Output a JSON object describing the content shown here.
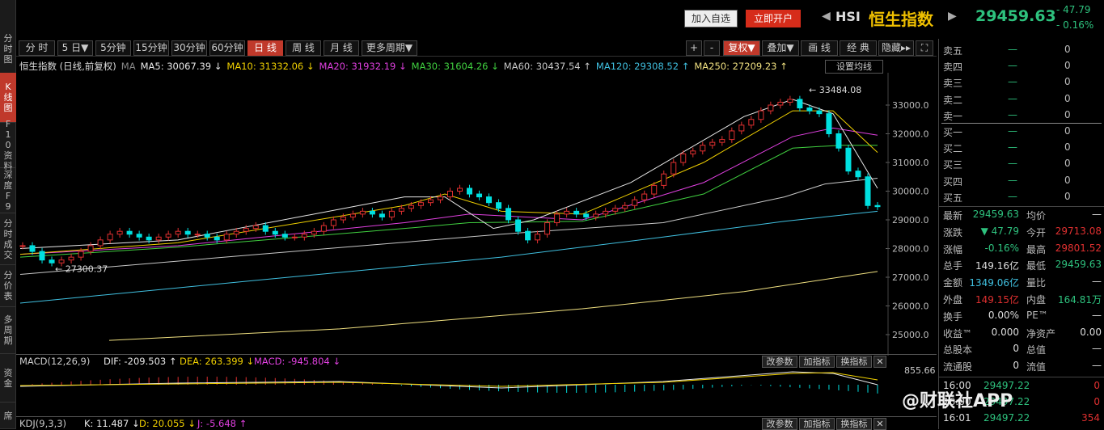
{
  "left_tabs": [
    "分时图",
    "K线图",
    "F10资料",
    "深度F9",
    "分时成交",
    "分价表",
    "多周期",
    "资金",
    "席"
  ],
  "header": {
    "add_watch": "加入自选",
    "open_account": "立即开户",
    "code": "HSI",
    "name": "恒生指数",
    "price": "29459.63",
    "change": "- 47.79",
    "change_pct": "- 0.16%"
  },
  "period_tabs": [
    "分 时",
    "5 日▼",
    "5分钟",
    "15分钟",
    "30分钟",
    "60分钟",
    "日 线",
    "周 线",
    "月 线",
    "更多周期▼"
  ],
  "active_period": "日 线",
  "toolbar_right": [
    "+",
    "-",
    "复权▼",
    "叠加▼",
    "画 线",
    "经 典",
    "隐藏▸▸",
    "⛶"
  ],
  "ma_legend": {
    "title": "恒生指数 (日线,前复权)",
    "ma": "MA",
    "items": [
      {
        "label": "MA5: 30067.39 ↓",
        "color": "#e8e8e8"
      },
      {
        "label": "MA10: 31332.06 ↓",
        "color": "#f0d000"
      },
      {
        "label": "MA20: 31932.19 ↓",
        "color": "#e040e0"
      },
      {
        "label": "MA30: 31604.26 ↓",
        "color": "#40d040"
      },
      {
        "label": "MA60: 30437.54 ↑",
        "color": "#c8c8c8"
      },
      {
        "label": "MA120: 29308.52 ↑",
        "color": "#40c0e0"
      },
      {
        "label": "MA250: 27209.23 ↑",
        "color": "#f0e080"
      }
    ],
    "settings": "设置均线"
  },
  "chart_data": {
    "type": "candlestick",
    "yticks": [
      "33000.0",
      "32000.0",
      "31000.0",
      "30000.0",
      "29000.0",
      "28000.0",
      "27000.0",
      "26000.0",
      "25000.0"
    ],
    "high_label": "33484.08",
    "low_label": "27300.37"
  },
  "macd": {
    "name": "MACD(12,26,9)",
    "dif": "DIF: -209.503 ↑",
    "dea": "DEA: 263.399 ↓",
    "macd": "MACD: -945.804 ↓",
    "top": "855.66",
    "bottom": "-6.80",
    "btns": [
      "改参数",
      "加指标",
      "换指标"
    ]
  },
  "kdj": {
    "name": "KDJ(9,3,3)",
    "k": "K: 11.487 ↓",
    "d": "D: 20.055 ↓",
    "j": "J: -5.648 ↑",
    "btns": [
      "改参数",
      "加指标",
      "换指标"
    ]
  },
  "orderbook": {
    "sell": [
      {
        "l": "卖五",
        "p": "—",
        "v": "0"
      },
      {
        "l": "卖四",
        "p": "—",
        "v": "0"
      },
      {
        "l": "卖三",
        "p": "—",
        "v": "0"
      },
      {
        "l": "卖二",
        "p": "—",
        "v": "0"
      },
      {
        "l": "卖一",
        "p": "—",
        "v": "0"
      }
    ],
    "buy": [
      {
        "l": "买一",
        "p": "—",
        "v": "0"
      },
      {
        "l": "买二",
        "p": "—",
        "v": "0"
      },
      {
        "l": "买三",
        "p": "—",
        "v": "0"
      },
      {
        "l": "买四",
        "p": "—",
        "v": "0"
      },
      {
        "l": "买五",
        "p": "—",
        "v": "0"
      }
    ]
  },
  "quote": [
    [
      "最新",
      "29459.63",
      "均价",
      "—"
    ],
    [
      "涨跌",
      "▼ 47.79",
      "今开",
      "29713.08"
    ],
    [
      "涨幅",
      "-0.16%",
      "最高",
      "29801.52"
    ],
    [
      "总手",
      "149.16亿",
      "最低",
      "29459.63"
    ],
    [
      "金额",
      "1349.06亿",
      "量比",
      "—"
    ],
    [
      "外盘",
      "149.15亿",
      "内盘",
      "164.81万"
    ],
    [
      "换手",
      "0.00%",
      "PE™",
      "—"
    ],
    [
      "收益™",
      "0.000",
      "净资产",
      "0.00"
    ],
    [
      "总股本",
      "0",
      "总值",
      "—"
    ],
    [
      "流通股",
      "0",
      "流值",
      "—"
    ]
  ],
  "ticks": [
    {
      "t": "16:00",
      "p": "29497.22",
      "v": "0"
    },
    {
      "t": "16:00",
      "p": "29497.22",
      "v": "0"
    },
    {
      "t": "16:01",
      "p": "29497.22",
      "v": "354"
    }
  ],
  "watermark": "@财联社APP"
}
